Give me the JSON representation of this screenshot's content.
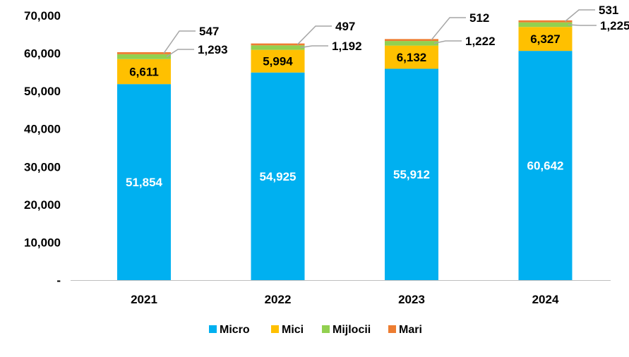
{
  "chart_data": {
    "type": "bar",
    "stacked": true,
    "categories": [
      "2021",
      "2022",
      "2023",
      "2024"
    ],
    "series": [
      {
        "name": "Micro",
        "color": "#00B0F0",
        "values": [
          51854,
          54925,
          55912,
          60642
        ],
        "labels": [
          "51,854",
          "54,925",
          "55,912",
          "60,642"
        ],
        "label_color": "#FFFFFF"
      },
      {
        "name": "Mici",
        "color": "#FFC000",
        "values": [
          6611,
          5994,
          6132,
          6327
        ],
        "labels": [
          "6,611",
          "5,994",
          "6,132",
          "6,327"
        ],
        "label_color": "#000000"
      },
      {
        "name": "Mijlocii",
        "color": "#92D050",
        "values": [
          1293,
          1192,
          1222,
          1225
        ],
        "labels": [
          "1,293",
          "1,192",
          "1,222",
          "1,225"
        ],
        "label_color": "#000000"
      },
      {
        "name": "Mari",
        "color": "#ED7D31",
        "values": [
          547,
          497,
          512,
          531
        ],
        "labels": [
          "547",
          "497",
          "512",
          "531"
        ],
        "label_color": "#000000"
      }
    ],
    "y_ticks": [
      "-",
      "10,000",
      "20,000",
      "30,000",
      "40,000",
      "50,000",
      "60,000",
      "70,000"
    ],
    "ylim": [
      0,
      70000
    ],
    "grid": false,
    "legend_position": "bottom",
    "leader_line_color": "#A6A6A6",
    "axis_color": "#BFBFBF"
  }
}
